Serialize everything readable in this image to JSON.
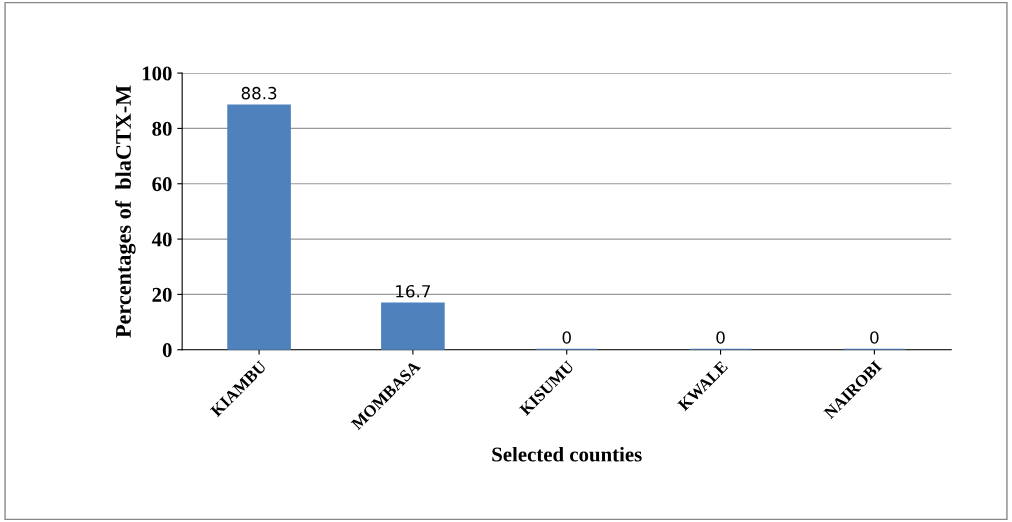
{
  "chart_data": {
    "type": "bar",
    "xlabel": "Selected counties",
    "ylabel": "Percentages of  blaCTX-M",
    "categories": [
      "KIAMBU",
      "MOMBASA",
      "KISUMU",
      "KWALE",
      "NAIROBI"
    ],
    "values": [
      88.3,
      16.7,
      0,
      0,
      0
    ],
    "color": "#4f81bd",
    "ylim": [
      0,
      100
    ],
    "yticks": [
      0,
      20,
      40,
      60,
      80,
      100
    ],
    "grid": "y",
    "data_labels": true
  }
}
